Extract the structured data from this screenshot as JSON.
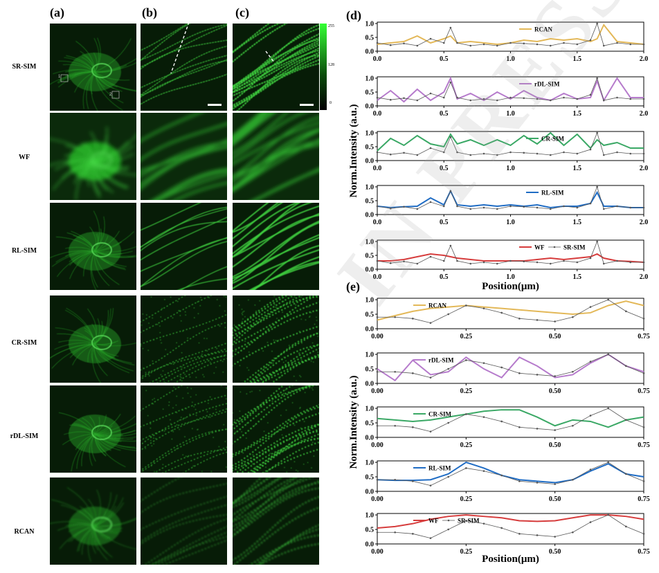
{
  "panel_labels": {
    "a": "(a)",
    "b": "(b)",
    "c": "(c)",
    "d": "(d)",
    "e": "(e)"
  },
  "row_labels": [
    "SR-SIM",
    "WF",
    "RL-SIM",
    "CR-SIM",
    "rDL-SIM",
    "RCAN"
  ],
  "colorbar": {
    "max": "255",
    "mid": "128",
    "min": "0"
  },
  "roi_labels": [
    "1",
    "2"
  ],
  "watermark": "IN PRESS",
  "colors": {
    "RCAN": "#e3b858",
    "rDL-SIM": "#b67bcc",
    "CR-SIM": "#3aa865",
    "RL-SIM": "#1f6cc4",
    "WF": "#d63c3c",
    "SR-SIM": "#666666"
  },
  "chart_data": [
    {
      "id": "d",
      "type": "line",
      "ylabel": "Norm.Intensity (a.u.)",
      "xlabel": "Position(μm)",
      "xlim": [
        0,
        2.0
      ],
      "xticks": [
        "0.0",
        "0.5",
        "1.0",
        "1.5",
        "2.0"
      ],
      "yticks": [
        "0.0",
        "0.5",
        "1.0"
      ],
      "x": [
        0.0,
        0.1,
        0.2,
        0.3,
        0.4,
        0.5,
        0.55,
        0.6,
        0.7,
        0.8,
        0.9,
        1.0,
        1.1,
        1.2,
        1.3,
        1.4,
        1.5,
        1.6,
        1.65,
        1.7,
        1.8,
        1.9,
        2.0
      ],
      "reference": {
        "name": "SR-SIM",
        "values": [
          0.3,
          0.22,
          0.28,
          0.2,
          0.45,
          0.3,
          0.85,
          0.3,
          0.2,
          0.25,
          0.2,
          0.3,
          0.28,
          0.25,
          0.2,
          0.3,
          0.25,
          0.4,
          1.0,
          0.2,
          0.3,
          0.25,
          0.25
        ]
      },
      "subplots": [
        {
          "name": "RCAN",
          "values": [
            0.25,
            0.3,
            0.35,
            0.55,
            0.3,
            0.45,
            0.55,
            0.3,
            0.35,
            0.3,
            0.25,
            0.3,
            0.4,
            0.35,
            0.45,
            0.4,
            0.45,
            0.35,
            0.45,
            0.95,
            0.35,
            0.3,
            0.25
          ]
        },
        {
          "name": "rDL-SIM",
          "values": [
            0.2,
            0.55,
            0.15,
            0.6,
            0.2,
            0.5,
            1.0,
            0.25,
            0.45,
            0.2,
            0.5,
            0.25,
            0.55,
            0.3,
            0.2,
            0.45,
            0.25,
            0.3,
            0.9,
            0.2,
            1.0,
            0.3,
            0.3
          ]
        },
        {
          "name": "CR-SIM",
          "values": [
            0.35,
            0.8,
            0.55,
            0.9,
            0.6,
            0.5,
            0.95,
            0.6,
            0.75,
            0.55,
            0.75,
            0.55,
            0.9,
            0.6,
            1.0,
            0.55,
            0.95,
            0.45,
            0.75,
            0.55,
            0.65,
            0.45,
            0.45
          ]
        },
        {
          "name": "RL-SIM",
          "values": [
            0.3,
            0.25,
            0.28,
            0.3,
            0.6,
            0.35,
            0.85,
            0.35,
            0.3,
            0.35,
            0.3,
            0.35,
            0.3,
            0.35,
            0.25,
            0.3,
            0.3,
            0.4,
            0.8,
            0.3,
            0.3,
            0.25,
            0.25
          ]
        },
        {
          "name": "WF",
          "values": [
            0.3,
            0.3,
            0.35,
            0.45,
            0.55,
            0.5,
            0.45,
            0.4,
            0.35,
            0.3,
            0.3,
            0.3,
            0.3,
            0.35,
            0.4,
            0.35,
            0.4,
            0.45,
            0.55,
            0.4,
            0.3,
            0.28,
            0.25
          ]
        }
      ]
    },
    {
      "id": "e",
      "type": "line",
      "ylabel": "Norm.Intensity (a.u.)",
      "xlabel": "Position(μm)",
      "xlim": [
        0,
        0.75
      ],
      "xticks": [
        "0.00",
        "0.25",
        "0.50",
        "0.75"
      ],
      "yticks": [
        "0.0",
        "0.5",
        "1.0"
      ],
      "x": [
        0.0,
        0.05,
        0.1,
        0.15,
        0.2,
        0.25,
        0.3,
        0.35,
        0.4,
        0.45,
        0.5,
        0.55,
        0.6,
        0.65,
        0.7,
        0.75
      ],
      "reference": {
        "name": "SR-SIM",
        "values": [
          0.4,
          0.4,
          0.35,
          0.2,
          0.5,
          0.8,
          0.7,
          0.55,
          0.35,
          0.3,
          0.25,
          0.4,
          0.75,
          1.0,
          0.6,
          0.35
        ]
      },
      "subplots": [
        {
          "name": "RCAN",
          "values": [
            0.3,
            0.45,
            0.6,
            0.7,
            0.75,
            0.8,
            0.75,
            0.7,
            0.65,
            0.6,
            0.55,
            0.5,
            0.55,
            0.8,
            0.95,
            0.8
          ]
        },
        {
          "name": "rDL-SIM",
          "values": [
            0.5,
            0.1,
            0.8,
            0.3,
            0.4,
            0.9,
            0.5,
            0.2,
            0.9,
            0.6,
            0.2,
            0.3,
            0.7,
            1.0,
            0.6,
            0.4
          ]
        },
        {
          "name": "CR-SIM",
          "values": [
            0.65,
            0.6,
            0.55,
            0.6,
            0.7,
            0.8,
            0.9,
            0.95,
            0.95,
            0.7,
            0.4,
            0.6,
            0.55,
            0.35,
            0.6,
            0.7
          ]
        },
        {
          "name": "RL-SIM",
          "values": [
            0.4,
            0.38,
            0.38,
            0.4,
            0.6,
            1.0,
            0.8,
            0.55,
            0.4,
            0.35,
            0.3,
            0.4,
            0.7,
            0.95,
            0.6,
            0.5
          ]
        },
        {
          "name": "WF",
          "values": [
            0.55,
            0.6,
            0.7,
            0.85,
            0.95,
            1.0,
            0.95,
            0.9,
            0.8,
            0.78,
            0.8,
            0.9,
            1.0,
            1.0,
            0.95,
            0.85
          ]
        }
      ]
    }
  ]
}
